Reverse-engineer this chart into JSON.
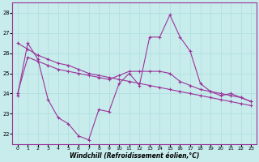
{
  "xlabel": "Windchill (Refroidissement éolien,°C)",
  "background_color": "#c8ecec",
  "line_color": "#993399",
  "grid_color": "#aadddd",
  "xlim": [
    -0.5,
    23.5
  ],
  "ylim": [
    21.5,
    28.5
  ],
  "yticks": [
    22,
    23,
    24,
    25,
    26,
    27,
    28
  ],
  "xticks": [
    0,
    1,
    2,
    3,
    4,
    5,
    6,
    7,
    8,
    9,
    10,
    11,
    12,
    13,
    14,
    15,
    16,
    17,
    18,
    19,
    20,
    21,
    22,
    23
  ],
  "line1_x": [
    0,
    1,
    2,
    3,
    4,
    5,
    6,
    7,
    8,
    9,
    10,
    11,
    12,
    13,
    14,
    15,
    16,
    17,
    18,
    19,
    20,
    21,
    22,
    23
  ],
  "line1_y": [
    23.9,
    26.5,
    25.7,
    23.7,
    22.8,
    22.5,
    21.9,
    21.7,
    23.2,
    23.1,
    24.5,
    25.0,
    24.4,
    26.8,
    26.8,
    27.9,
    26.8,
    26.1,
    24.5,
    24.1,
    23.9,
    24.0,
    23.8,
    23.6
  ],
  "line2_x": [
    0,
    1,
    2,
    3,
    4,
    5,
    6,
    7,
    8,
    9,
    10,
    11,
    12,
    13,
    14,
    15,
    16,
    17,
    18,
    19,
    20,
    21,
    22,
    23
  ],
  "line2_y": [
    26.5,
    26.2,
    25.9,
    25.7,
    25.5,
    25.4,
    25.2,
    25.0,
    24.9,
    24.8,
    24.7,
    24.6,
    24.5,
    24.4,
    24.3,
    24.2,
    24.1,
    24.0,
    23.9,
    23.8,
    23.7,
    23.6,
    23.5,
    23.4
  ],
  "line3_x": [
    0,
    1,
    2,
    3,
    4,
    5,
    6,
    7,
    8,
    9,
    10,
    11,
    12,
    13,
    14,
    15,
    16,
    17,
    18,
    19,
    20,
    21,
    22,
    23
  ],
  "line3_y": [
    24.0,
    25.8,
    25.6,
    25.4,
    25.2,
    25.1,
    25.0,
    24.9,
    24.8,
    24.7,
    24.9,
    25.1,
    25.1,
    25.1,
    25.1,
    25.0,
    24.6,
    24.4,
    24.2,
    24.1,
    24.0,
    23.9,
    23.8,
    23.6
  ]
}
